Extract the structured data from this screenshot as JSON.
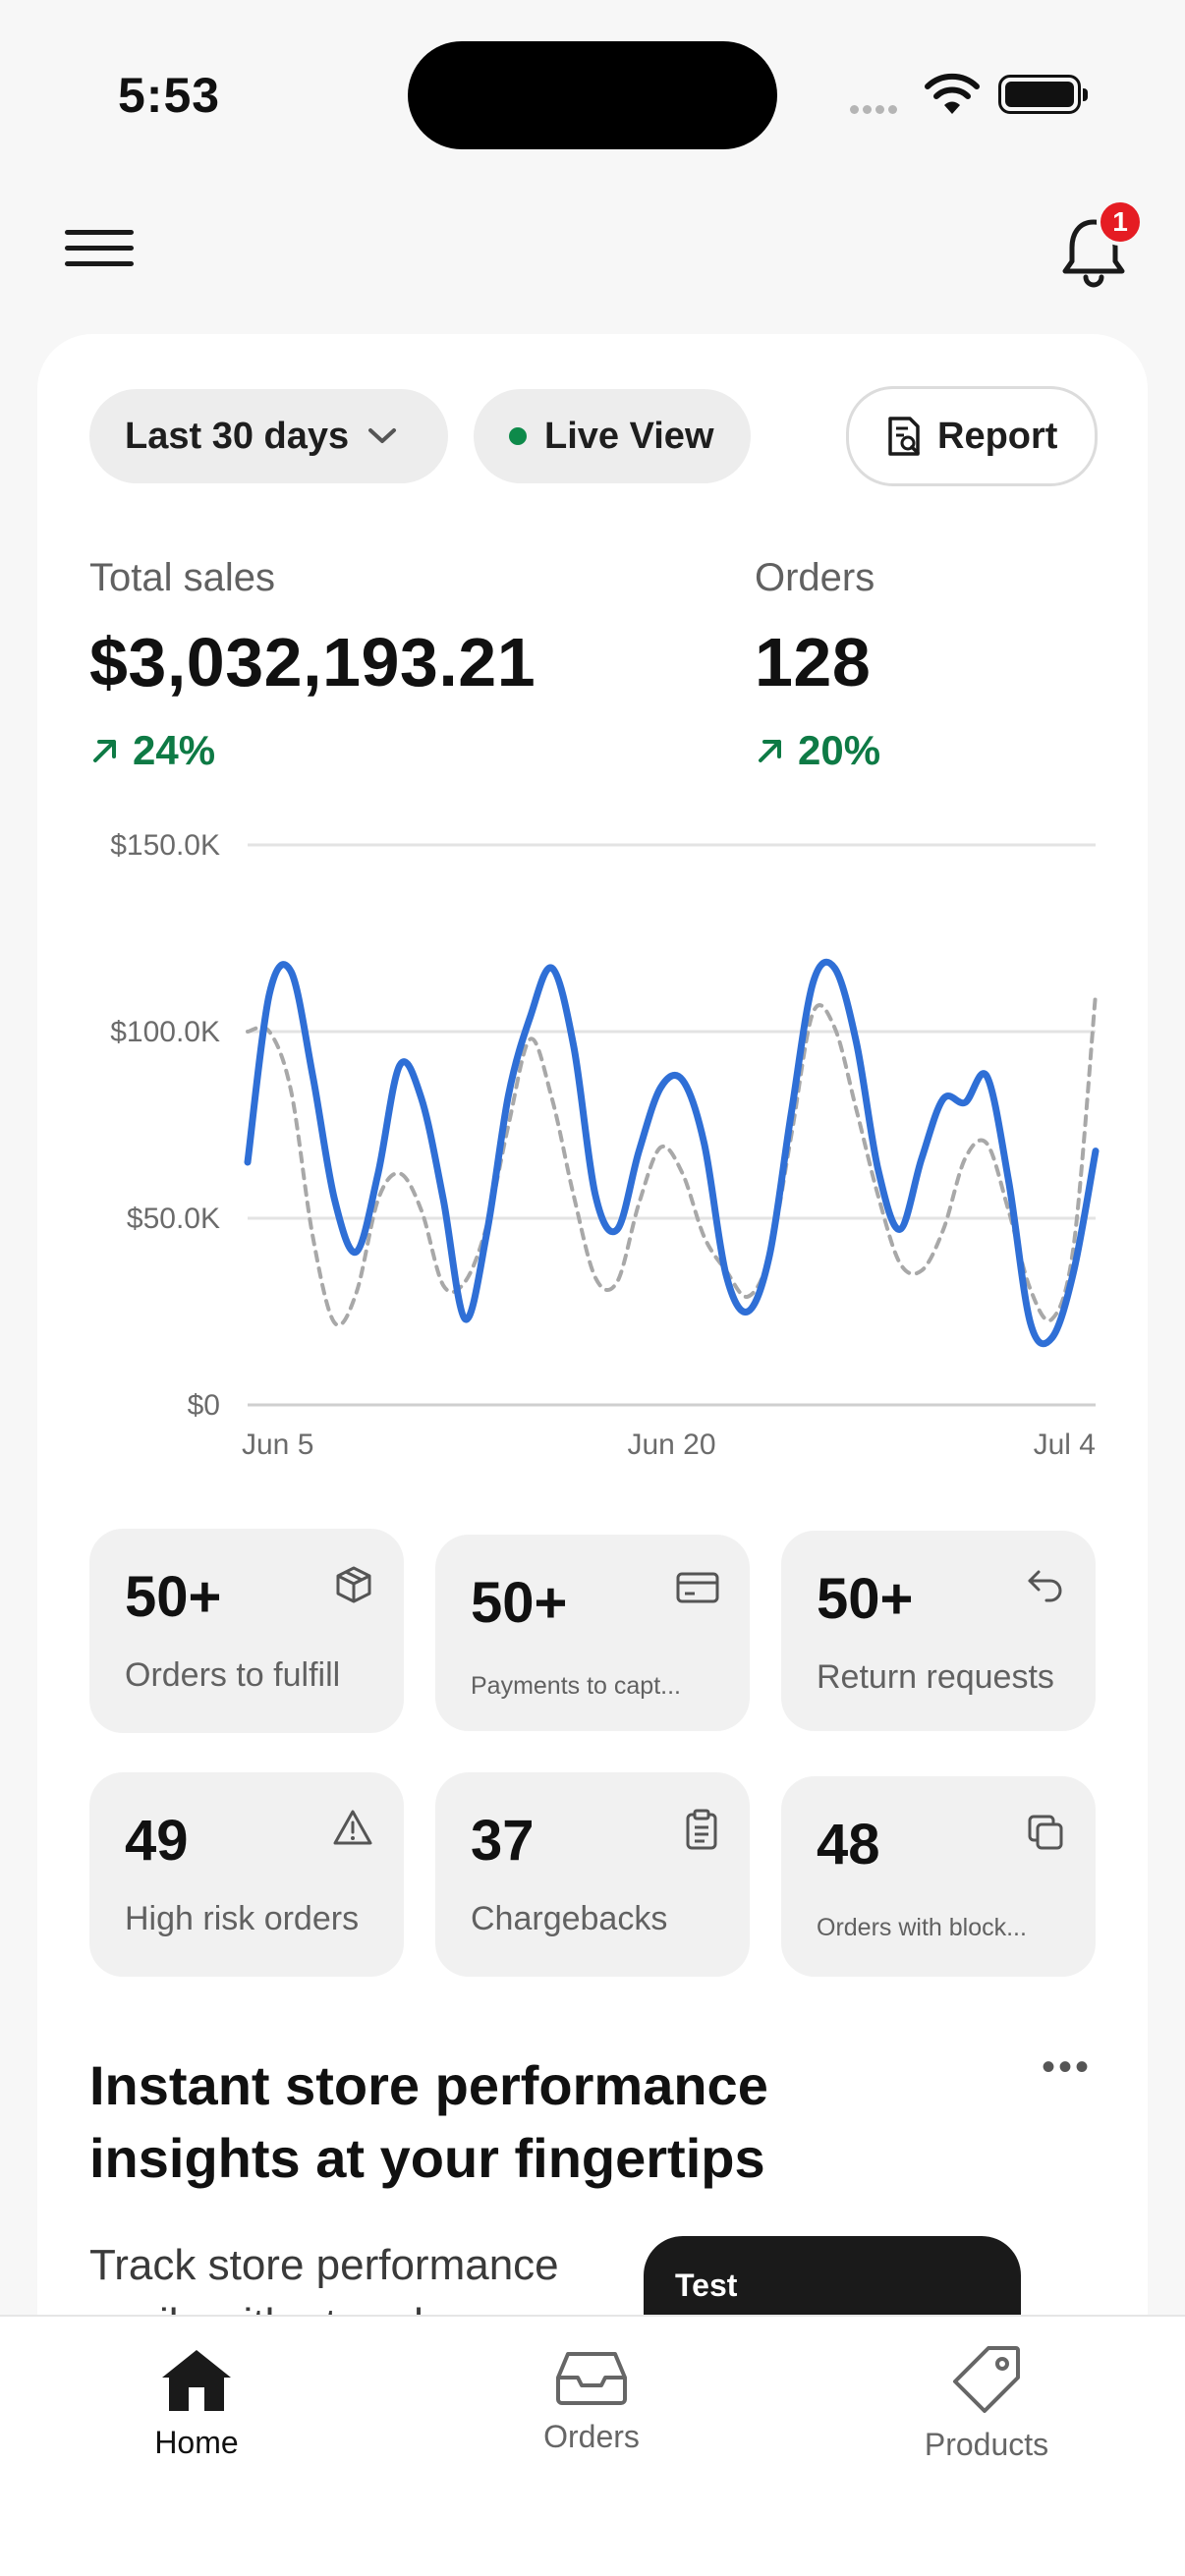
{
  "status_bar": {
    "time": "5:53"
  },
  "header": {
    "notification_count": "1"
  },
  "filters": {
    "range_label": "Last 30 days",
    "live_label": "Live View",
    "report_label": "Report"
  },
  "metrics": {
    "sales": {
      "label": "Total sales",
      "value": "$3,032,193.21",
      "change": "24%"
    },
    "orders": {
      "label": "Orders",
      "value": "128",
      "change": "20%"
    }
  },
  "chart_data": {
    "type": "line",
    "y_ticks": [
      "$150.0K",
      "$100.0K",
      "$50.0K",
      "$0"
    ],
    "x_ticks": [
      "Jun 5",
      "Jun 20",
      "Jul 4"
    ],
    "ylim": [
      0,
      150000
    ],
    "grid": true,
    "colors": {
      "current": "#2f6fd6",
      "previous": "#a8a8a8"
    },
    "series": [
      {
        "values": [
          65000,
          110000,
          116000,
          88000,
          55000,
          41000,
          62000,
          91000,
          82000,
          55000,
          23000,
          46000,
          83000,
          104000,
          117000,
          96000,
          56000,
          47000,
          68000,
          85000,
          87000,
          70000,
          35000,
          25000,
          40000,
          78000,
          113000,
          117000,
          97000,
          63000,
          47000,
          66000,
          82000,
          81000,
          88000,
          60000,
          22000,
          18000,
          36000,
          68000
        ]
      },
      {
        "values": [
          100000,
          100000,
          84000,
          45000,
          22000,
          30000,
          55000,
          62000,
          52000,
          32000,
          33000,
          48000,
          75000,
          98000,
          82000,
          56000,
          34000,
          33000,
          54000,
          69000,
          62000,
          45000,
          36000,
          29000,
          40000,
          72000,
          105000,
          101000,
          79000,
          56000,
          38000,
          36000,
          47000,
          66000,
          70000,
          52000,
          31000,
          23000,
          43000,
          110000
        ]
      }
    ]
  },
  "tiles": [
    {
      "value": "50+",
      "label": "Orders to fulfill",
      "icon": "package-icon"
    },
    {
      "value": "50+",
      "label": "Payments to capt...",
      "icon": "credit-card-icon"
    },
    {
      "value": "50+",
      "label": "Return requests",
      "icon": "return-arrow-icon"
    },
    {
      "value": "49",
      "label": "High risk orders",
      "icon": "warning-triangle-icon"
    },
    {
      "value": "37",
      "label": "Chargebacks",
      "icon": "clipboard-icon"
    },
    {
      "value": "48",
      "label": "Orders with block...",
      "icon": "copy-icon"
    }
  ],
  "insights": {
    "title": "Instant store performance insights at your fingertips",
    "body": "Track store performance easily with at-a-glance",
    "preview_label": "Test"
  },
  "nav": [
    {
      "label": "Home",
      "active": true
    },
    {
      "label": "Orders",
      "active": false
    },
    {
      "label": "Products",
      "active": false
    }
  ]
}
